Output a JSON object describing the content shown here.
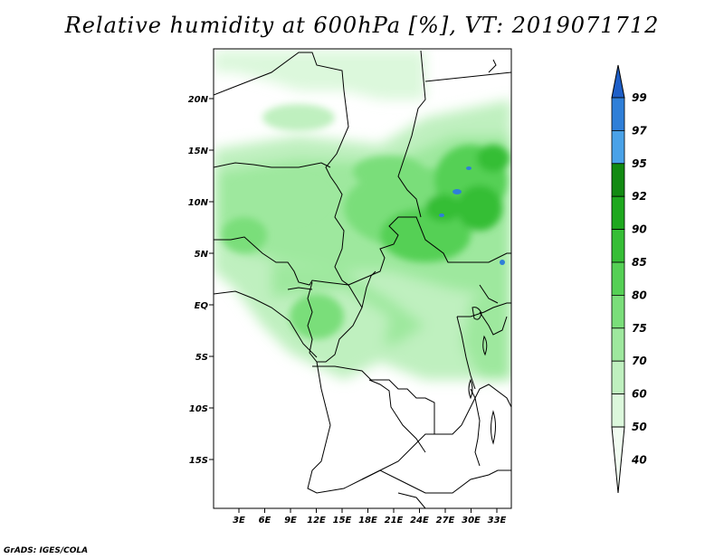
{
  "title": "Relative humidity at 600hPa [%], VT: 2019071712",
  "credit": "GrADS: IGES/COLA",
  "lat_labels": [
    "20N",
    "15N",
    "10N",
    "5N",
    "EQ",
    "5S",
    "10S",
    "15S"
  ],
  "lon_labels": [
    "3E",
    "6E",
    "9E",
    "12E",
    "15E",
    "18E",
    "21E",
    "24E",
    "27E",
    "30E",
    "33E"
  ],
  "colorbar": {
    "labels": [
      "99",
      "97",
      "95",
      "92",
      "90",
      "85",
      "80",
      "75",
      "70",
      "60",
      "50",
      "40"
    ],
    "colors": [
      "#1e5fc8",
      "#2f7fd8",
      "#4aa2e8",
      "#128a12",
      "#1ea81e",
      "#36be36",
      "#55d055",
      "#7ade7a",
      "#9ee89e",
      "#bff0bf",
      "#dcf8dc",
      "#f1fcf1"
    ]
  },
  "map": {
    "extent": {
      "lon": [
        0,
        35
      ],
      "lat": [
        -20,
        24
      ]
    }
  }
}
